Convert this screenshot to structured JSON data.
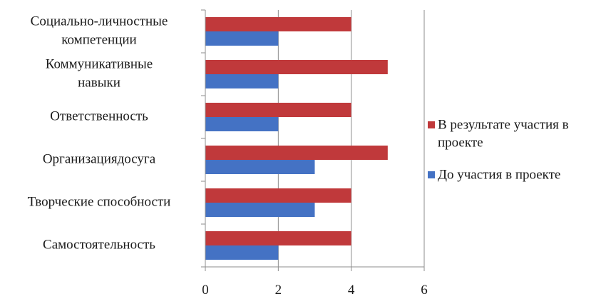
{
  "chart_data": {
    "type": "bar",
    "orientation": "horizontal",
    "categories": [
      "Социально-личностные компетенции",
      "Коммуникативные навыки",
      "Ответственность",
      "Организация досуга",
      "Творческие способности",
      "Самостоятельность"
    ],
    "category_lines": [
      [
        "Социально-личностные",
        "компетенции"
      ],
      [
        "Коммуникативные",
        "навыки"
      ],
      [
        "Ответственность"
      ],
      [
        "Организациядосуга"
      ],
      [
        "Творческие способности"
      ],
      [
        "Самостоятельность"
      ]
    ],
    "series": [
      {
        "name": "В результате участия в проекте",
        "legend_lines": [
          "В результате участия в",
          "проекте"
        ],
        "color": "#c0393b",
        "values": [
          4,
          5,
          4,
          5,
          4,
          4
        ]
      },
      {
        "name": "До участия в проекте",
        "legend_lines": [
          "До участия в проекте"
        ],
        "color": "#4472c4",
        "values": [
          2,
          2,
          2,
          3,
          3,
          2
        ]
      }
    ],
    "xlim": [
      0,
      6
    ],
    "xticks": [
      0,
      2,
      4,
      6
    ],
    "xtick_labels": [
      "0",
      "2",
      "4",
      "6"
    ],
    "title": "",
    "xlabel": "",
    "ylabel": "",
    "grid": "vertical",
    "legend_position": "right"
  }
}
